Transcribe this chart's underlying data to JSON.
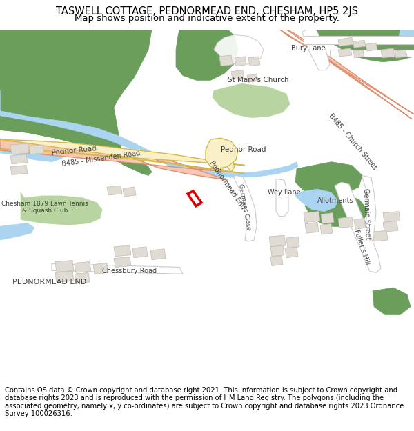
{
  "title_line1": "TASWELL COTTAGE, PEDNORMEAD END, CHESHAM, HP5 2JS",
  "title_line2": "Map shows position and indicative extent of the property.",
  "copyright_text": "Contains OS data © Crown copyright and database right 2021. This information is subject to Crown copyright and database rights 2023 and is reproduced with the permission of HM Land Registry. The polygons (including the associated geometry, namely x, y co-ordinates) are subject to Crown copyright and database rights 2023 Ordnance Survey 100026316.",
  "bg_color": "#f7f5f2",
  "road_yellow_fill": "#faf0c8",
  "road_yellow_edge": "#d4b84a",
  "road_salmon_fill": "#f5c8b4",
  "road_salmon_edge": "#e09070",
  "road_white_fill": "#ffffff",
  "road_white_edge": "#cccccc",
  "green_dark": "#6a9e5a",
  "green_light": "#b8d4a0",
  "blue_water": "#aad4f0",
  "building_fill": "#e0dcd4",
  "building_edge": "#c0bbb4",
  "plot_red": "#dd0000",
  "text_dark": "#404040",
  "title_fontsize": 10.5,
  "subtitle_fontsize": 9.5,
  "copyright_fontsize": 7.2,
  "figsize": [
    6.0,
    6.25
  ],
  "dpi": 100
}
